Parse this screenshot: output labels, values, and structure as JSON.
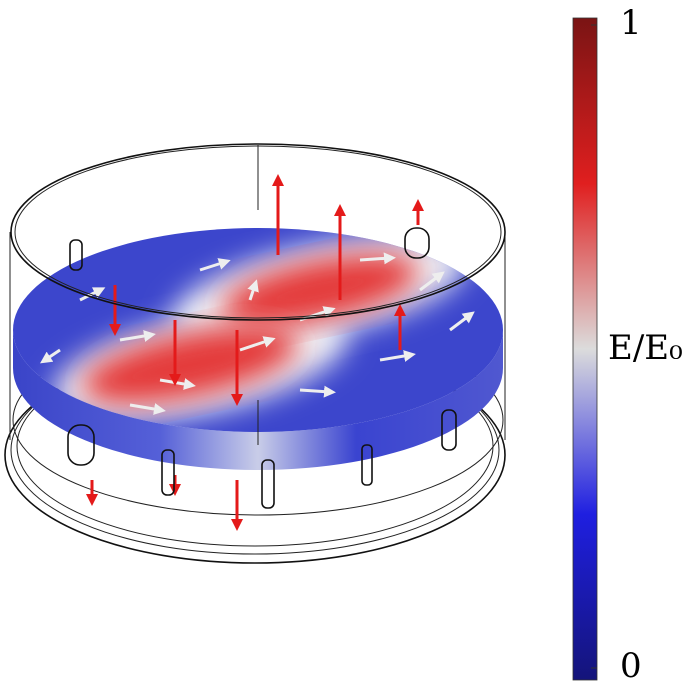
{
  "colorbar": {
    "label": "E/E₀",
    "range": [
      0,
      1
    ],
    "ticks": [
      0,
      1
    ]
  }
}
